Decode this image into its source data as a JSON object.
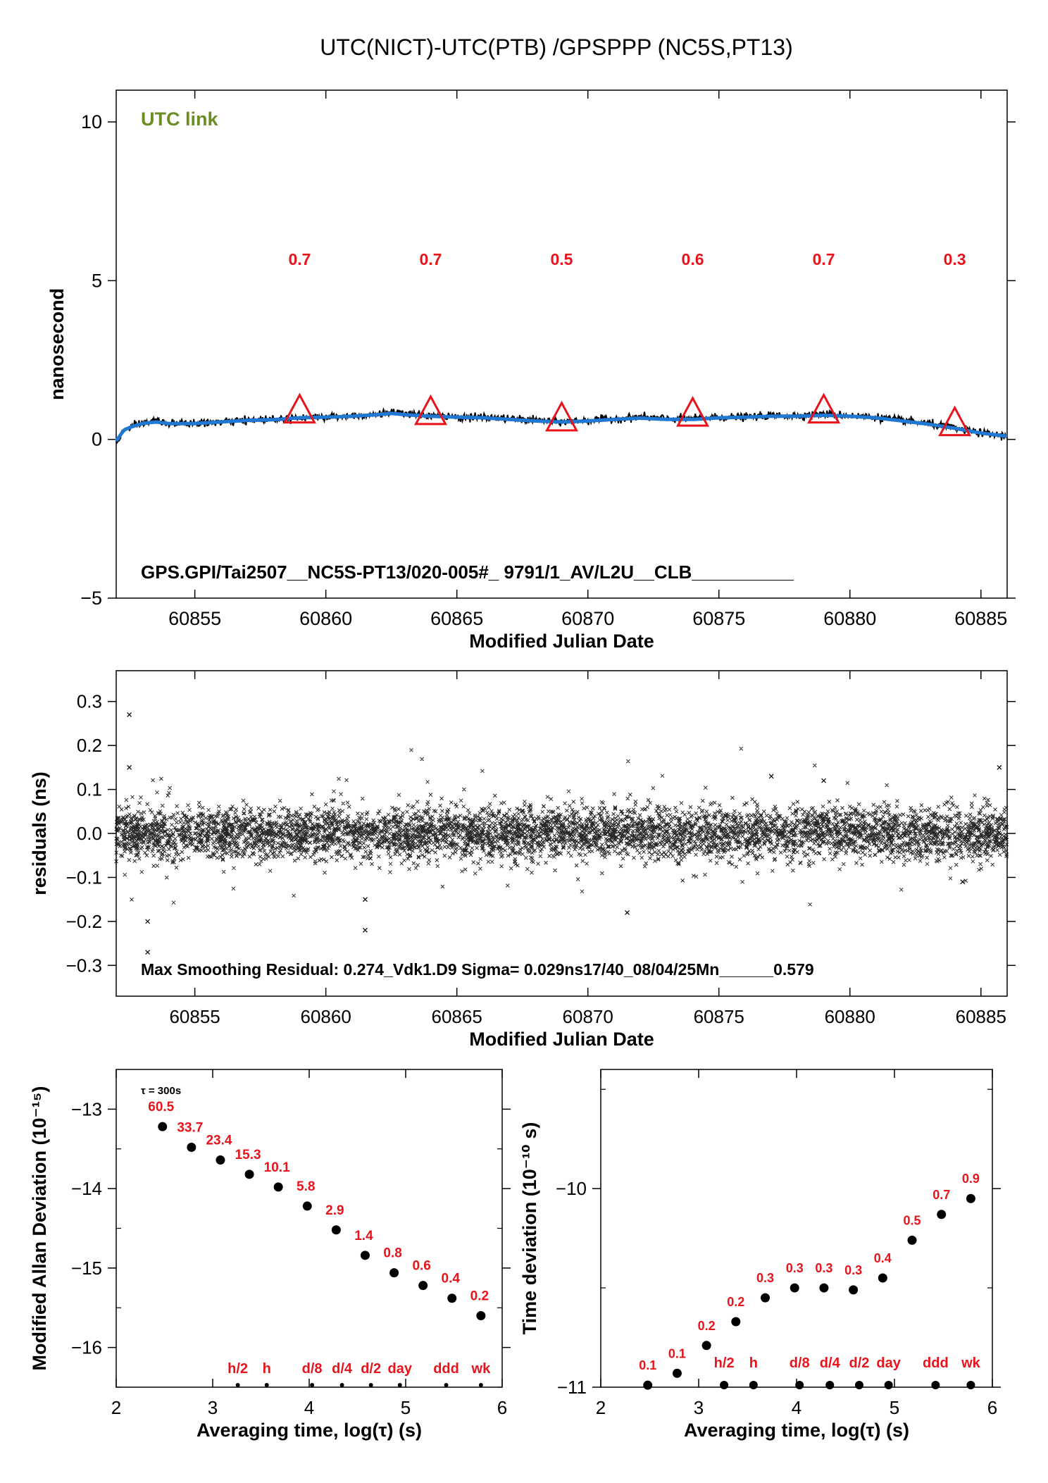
{
  "page": {
    "title": "UTC(NICT)-UTC(PTB)  /GPSPPP  (NC5S,PT13)"
  },
  "colors": {
    "accent_red": "#e8141c",
    "series_blue": "#1f78d1",
    "label_green": "#6b8e23",
    "ink": "#000000"
  },
  "chart_data": [
    {
      "id": "timeseries",
      "type": "line",
      "title": "UTC(NICT)-UTC(PTB)  /GPSPPP  (NC5S,PT13)",
      "xlabel": "Modified Julian Date",
      "ylabel": "nanosecond",
      "xlim": [
        60852.0,
        60886.0
      ],
      "ylim": [
        -5,
        11
      ],
      "xticks": [
        60855,
        60860,
        60865,
        60870,
        60875,
        60880,
        60885
      ],
      "yticks": [
        -5,
        0,
        5,
        10
      ],
      "ytick_labels": [
        "−5",
        "0",
        "5",
        "10"
      ],
      "legend_text": "UTC link",
      "footer_text": "GPS.GPI/Tai2507__NC5S-PT13/020-005#_  9791/1_AV/L2U__CLB__________",
      "series": [
        {
          "name": "raw",
          "color": "#000000",
          "x": [
            60852.0,
            60852.3,
            60852.6,
            60853.0,
            60853.5,
            60854.0,
            60855.0,
            60856.0,
            60857.0,
            60858.0,
            60859.0,
            60860.0,
            60861.0,
            60862.0,
            60862.5,
            60863.0,
            60864.0,
            60865.0,
            60866.0,
            60867.0,
            60868.0,
            60869.0,
            60870.0,
            60871.0,
            60872.0,
            60873.0,
            60874.0,
            60875.0,
            60876.0,
            60877.0,
            60878.0,
            60879.0,
            60880.0,
            60881.0,
            60882.0,
            60883.0,
            60884.0,
            60885.0,
            60886.0
          ],
          "values": [
            -0.1,
            0.3,
            0.4,
            0.5,
            0.6,
            0.5,
            0.5,
            0.55,
            0.6,
            0.65,
            0.7,
            0.7,
            0.75,
            0.8,
            0.85,
            0.8,
            0.75,
            0.7,
            0.7,
            0.65,
            0.6,
            0.55,
            0.6,
            0.65,
            0.7,
            0.65,
            0.65,
            0.7,
            0.7,
            0.75,
            0.75,
            0.8,
            0.75,
            0.7,
            0.6,
            0.5,
            0.35,
            0.2,
            0.1
          ]
        },
        {
          "name": "smoothed",
          "color": "#1f78d1",
          "x": [
            60852.0,
            60852.3,
            60852.6,
            60853.0,
            60853.5,
            60854.0,
            60855.0,
            60856.0,
            60857.0,
            60858.0,
            60859.0,
            60860.0,
            60861.0,
            60862.0,
            60862.5,
            60863.0,
            60864.0,
            60865.0,
            60866.0,
            60867.0,
            60868.0,
            60869.0,
            60870.0,
            60871.0,
            60872.0,
            60873.0,
            60874.0,
            60875.0,
            60876.0,
            60877.0,
            60878.0,
            60879.0,
            60880.0,
            60881.0,
            60882.0,
            60883.0,
            60884.0,
            60885.0,
            60886.0
          ],
          "values": [
            -0.05,
            0.3,
            0.4,
            0.5,
            0.55,
            0.5,
            0.5,
            0.55,
            0.6,
            0.62,
            0.68,
            0.7,
            0.73,
            0.78,
            0.82,
            0.78,
            0.73,
            0.7,
            0.68,
            0.63,
            0.58,
            0.55,
            0.58,
            0.63,
            0.67,
            0.63,
            0.63,
            0.68,
            0.7,
            0.73,
            0.73,
            0.76,
            0.73,
            0.68,
            0.58,
            0.48,
            0.35,
            0.2,
            0.1
          ]
        }
      ],
      "markers": [
        {
          "x": 60859.0,
          "y": 0.8,
          "label": "0.7"
        },
        {
          "x": 60864.0,
          "y": 0.75,
          "label": "0.7"
        },
        {
          "x": 60869.0,
          "y": 0.55,
          "label": "0.5"
        },
        {
          "x": 60874.0,
          "y": 0.7,
          "label": "0.6"
        },
        {
          "x": 60879.0,
          "y": 0.8,
          "label": "0.7"
        },
        {
          "x": 60884.0,
          "y": 0.4,
          "label": "0.3"
        }
      ]
    },
    {
      "id": "residuals",
      "type": "scatter",
      "xlabel": "Modified Julian Date",
      "ylabel": "residuals (ns)",
      "xlim": [
        60852.0,
        60886.0
      ],
      "ylim": [
        -0.37,
        0.37
      ],
      "xticks": [
        60855,
        60860,
        60865,
        60870,
        60875,
        60880,
        60885
      ],
      "yticks": [
        -0.3,
        -0.2,
        -0.1,
        0.0,
        0.1,
        0.2,
        0.3
      ],
      "ytick_labels": [
        "−0.3",
        "−0.2",
        "−0.1",
        "0.0",
        "0.1",
        "0.2",
        "0.3"
      ],
      "footer_text": "Max Smoothing Residual: 0.274_Vdk1.D9  Sigma= 0.029ns17/40_08/04/25Mn______0.579",
      "noise_sigma": 0.029,
      "outliers": [
        {
          "x": 60852.5,
          "y": 0.27
        },
        {
          "x": 60852.5,
          "y": 0.15
        },
        {
          "x": 60853.2,
          "y": -0.27
        },
        {
          "x": 60853.2,
          "y": -0.2
        },
        {
          "x": 60861.5,
          "y": -0.22
        },
        {
          "x": 60861.5,
          "y": -0.15
        },
        {
          "x": 60871.5,
          "y": -0.18
        },
        {
          "x": 60877.0,
          "y": 0.13
        },
        {
          "x": 60879.0,
          "y": 0.12
        },
        {
          "x": 60885.7,
          "y": 0.15
        },
        {
          "x": 60884.3,
          "y": -0.11
        }
      ]
    },
    {
      "id": "mdev",
      "type": "scatter",
      "xlabel": "Averaging time, log(τ) (s)",
      "ylabel": "Modified Allan Deviation (10⁻¹⁵)",
      "xlim": [
        2,
        6
      ],
      "ylim": [
        -16.5,
        -12.5
      ],
      "xticks": [
        2,
        3,
        4,
        5,
        6
      ],
      "yticks": [
        -13,
        -14,
        -15,
        -16
      ],
      "ytick_labels": [
        "−13",
        "−14",
        "−15",
        "−16"
      ],
      "note": "τ = 300s",
      "points": [
        {
          "x": 2.48,
          "y": -13.22,
          "label": "60.5"
        },
        {
          "x": 2.78,
          "y": -13.48,
          "label": "33.7"
        },
        {
          "x": 3.08,
          "y": -13.64,
          "label": "23.4"
        },
        {
          "x": 3.38,
          "y": -13.82,
          "label": "15.3"
        },
        {
          "x": 3.68,
          "y": -13.98,
          "label": "10.1"
        },
        {
          "x": 3.98,
          "y": -14.22,
          "label": "5.8"
        },
        {
          "x": 4.28,
          "y": -14.52,
          "label": "2.9"
        },
        {
          "x": 4.58,
          "y": -14.84,
          "label": "1.4"
        },
        {
          "x": 4.88,
          "y": -15.06,
          "label": "0.8"
        },
        {
          "x": 5.18,
          "y": -15.22,
          "label": "0.6"
        },
        {
          "x": 5.48,
          "y": -15.38,
          "label": "0.4"
        },
        {
          "x": 5.78,
          "y": -15.6,
          "label": "0.2"
        }
      ],
      "baseline_marks": [
        {
          "x": 3.26,
          "label": "h/2"
        },
        {
          "x": 3.56,
          "label": "h"
        },
        {
          "x": 4.03,
          "label": "d/8"
        },
        {
          "x": 4.34,
          "label": "d/4"
        },
        {
          "x": 4.64,
          "label": "d/2"
        },
        {
          "x": 4.94,
          "label": "day"
        },
        {
          "x": 5.42,
          "label": "ddd"
        },
        {
          "x": 5.78,
          "label": "wk"
        }
      ]
    },
    {
      "id": "tdev",
      "type": "scatter",
      "xlabel": "Averaging time, log(τ) (s)",
      "ylabel": "Time deviation (10⁻¹⁰ s)",
      "xlim": [
        2,
        6
      ],
      "ylim": [
        -11.0,
        -9.4
      ],
      "xticks": [
        2,
        3,
        4,
        5,
        6
      ],
      "yticks": [
        -10,
        -11
      ],
      "ytick_labels": [
        "−10",
        "−11"
      ],
      "points": [
        {
          "x": 2.48,
          "y": -10.99,
          "label": "0.1"
        },
        {
          "x": 2.78,
          "y": -10.93,
          "label": "0.1"
        },
        {
          "x": 3.08,
          "y": -10.79,
          "label": "0.2"
        },
        {
          "x": 3.38,
          "y": -10.67,
          "label": "0.2"
        },
        {
          "x": 3.68,
          "y": -10.55,
          "label": "0.3"
        },
        {
          "x": 3.98,
          "y": -10.5,
          "label": "0.3"
        },
        {
          "x": 4.28,
          "y": -10.5,
          "label": "0.3"
        },
        {
          "x": 4.58,
          "y": -10.51,
          "label": "0.3"
        },
        {
          "x": 4.88,
          "y": -10.45,
          "label": "0.4"
        },
        {
          "x": 5.18,
          "y": -10.26,
          "label": "0.5"
        },
        {
          "x": 5.48,
          "y": -10.13,
          "label": "0.7"
        },
        {
          "x": 5.78,
          "y": -10.05,
          "label": "0.9"
        }
      ],
      "baseline_marks": [
        {
          "x": 3.26,
          "label": "h/2"
        },
        {
          "x": 3.56,
          "label": "h"
        },
        {
          "x": 4.03,
          "label": "d/8"
        },
        {
          "x": 4.34,
          "label": "d/4"
        },
        {
          "x": 4.64,
          "label": "d/2"
        },
        {
          "x": 4.94,
          "label": "day"
        },
        {
          "x": 5.42,
          "label": "ddd"
        },
        {
          "x": 5.78,
          "label": "wk"
        }
      ]
    }
  ]
}
